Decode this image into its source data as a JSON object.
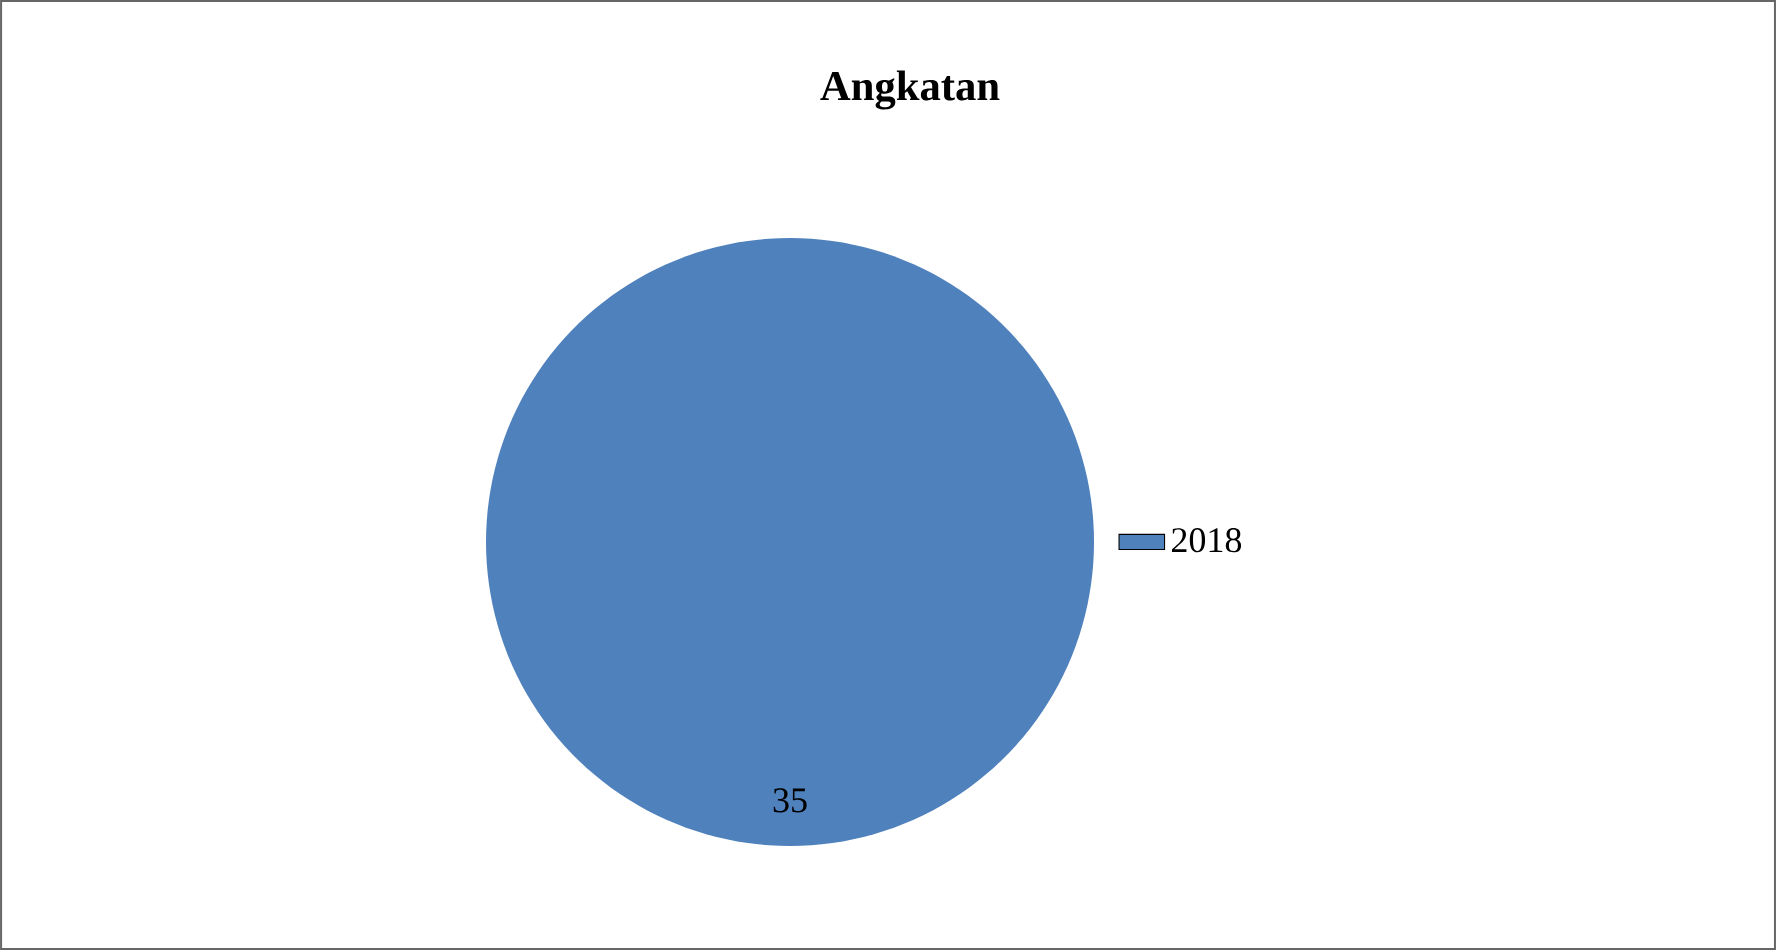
{
  "chart_data": {
    "type": "pie",
    "title": "Angkatan",
    "categories": [
      "2018"
    ],
    "values": [
      35
    ],
    "colors": [
      "#4f81bd"
    ],
    "data_labels": true,
    "legend": "right"
  }
}
